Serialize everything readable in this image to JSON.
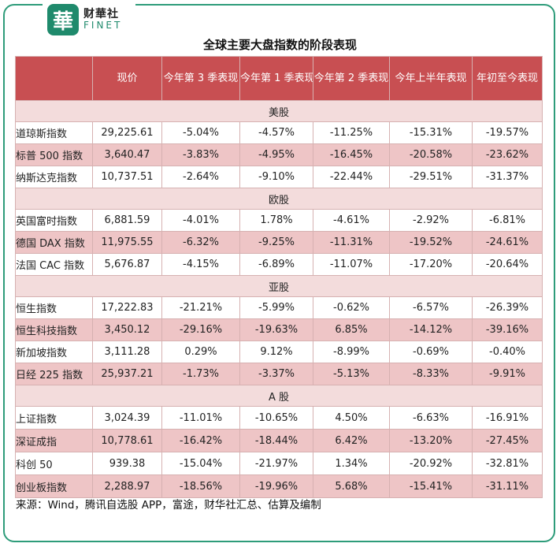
{
  "brand": {
    "mark": "華",
    "name_cn": "财華社",
    "name_en": "FINET"
  },
  "title": "全球主要大盘指数的阶段表现",
  "headers": [
    "",
    "现价",
    "今年第 3 季表现",
    "今年第 1 季表现",
    "今年第 2 季表现",
    "今年上半年表现",
    "年初至今表现"
  ],
  "sections": [
    {
      "label": "美股",
      "rows": [
        {
          "name": "道琼斯指数",
          "values": [
            "29,225.61",
            "-5.04%",
            "-4.57%",
            "-11.25%",
            "-15.31%",
            "-19.57%"
          ]
        },
        {
          "name": "标普 500 指数",
          "values": [
            "3,640.47",
            "-3.83%",
            "-4.95%",
            "-16.45%",
            "-20.58%",
            "-23.62%"
          ]
        },
        {
          "name": "纳斯达克指数",
          "values": [
            "10,737.51",
            "-2.64%",
            "-9.10%",
            "-22.44%",
            "-29.51%",
            "-31.37%"
          ]
        }
      ]
    },
    {
      "label": "欧股",
      "rows": [
        {
          "name": "英国富时指数",
          "values": [
            "6,881.59",
            "-4.01%",
            "1.78%",
            "-4.61%",
            "-2.92%",
            "-6.81%"
          ]
        },
        {
          "name": "德国 DAX 指数",
          "values": [
            "11,975.55",
            "-6.32%",
            "-9.25%",
            "-11.31%",
            "-19.52%",
            "-24.61%"
          ]
        },
        {
          "name": "法国 CAC 指数",
          "values": [
            "5,676.87",
            "-4.15%",
            "-6.89%",
            "-11.07%",
            "-17.20%",
            "-20.64%"
          ]
        }
      ]
    },
    {
      "label": "亚股",
      "rows": [
        {
          "name": "恒生指数",
          "values": [
            "17,222.83",
            "-21.21%",
            "-5.99%",
            "-0.62%",
            "-6.57%",
            "-26.39%"
          ]
        },
        {
          "name": "恒生科技指数",
          "values": [
            "3,450.12",
            "-29.16%",
            "-19.63%",
            "6.85%",
            "-14.12%",
            "-39.16%"
          ]
        },
        {
          "name": "新加坡指数",
          "values": [
            "3,111.28",
            "0.29%",
            "9.12%",
            "-8.99%",
            "-0.69%",
            "-0.40%"
          ]
        },
        {
          "name": "日经 225 指数",
          "values": [
            "25,937.21",
            "-1.73%",
            "-3.37%",
            "-5.13%",
            "-8.33%",
            "-9.91%"
          ]
        }
      ]
    },
    {
      "label": "A 股",
      "rows": [
        {
          "name": "上证指数",
          "values": [
            "3,024.39",
            "-11.01%",
            "-10.65%",
            "4.50%",
            "-6.63%",
            "-16.91%"
          ]
        },
        {
          "name": "深证成指",
          "values": [
            "10,778.61",
            "-16.42%",
            "-18.44%",
            "6.42%",
            "-13.20%",
            "-27.45%"
          ]
        },
        {
          "name": "科创 50",
          "values": [
            "939.38",
            "-15.04%",
            "-21.97%",
            "1.34%",
            "-20.92%",
            "-32.81%"
          ]
        },
        {
          "name": "创业板指数",
          "values": [
            "2,288.97",
            "-18.56%",
            "-19.96%",
            "5.68%",
            "-15.41%",
            "-31.11%"
          ]
        }
      ]
    }
  ],
  "source": "来源：Wind，腾讯自选股 APP，富途，财华社汇总、估算及编制",
  "colors": {
    "header_bg": "#c84f52",
    "row_pink": "#eec5c6",
    "section_bg": "#f3dcdc",
    "frame": "#2e9c7a",
    "brand": "#1f8a6c"
  }
}
